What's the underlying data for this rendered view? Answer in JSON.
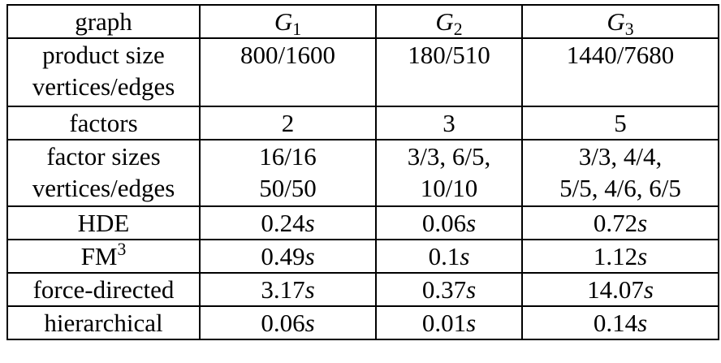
{
  "table": {
    "header": {
      "label": "graph",
      "columns": [
        {
          "symbol": "G",
          "sub": "1"
        },
        {
          "symbol": "G",
          "sub": "2"
        },
        {
          "symbol": "G",
          "sub": "3"
        }
      ]
    },
    "product_size": {
      "label_lines": [
        "product size",
        "vertices/edges"
      ],
      "values": [
        "800/1600",
        "180/510",
        "1440/7680"
      ]
    },
    "factors": {
      "label": "factors",
      "values": [
        "2",
        "3",
        "5"
      ]
    },
    "factor_sizes": {
      "label_lines": [
        "factor sizes",
        "vertices/edges"
      ],
      "values": [
        [
          "16/16",
          "50/50"
        ],
        [
          "3/3, 6/5,",
          "10/10"
        ],
        [
          "3/3, 4/4,",
          "5/5, 4/6, 6/5"
        ]
      ]
    },
    "timings": [
      {
        "label": "HDE",
        "label_sup": "",
        "values": [
          "0.24",
          "0.06",
          "0.72"
        ],
        "unit": "s"
      },
      {
        "label": "FM",
        "label_sup": "3",
        "values": [
          "0.49",
          "0.1",
          "1.12"
        ],
        "unit": "s"
      },
      {
        "label": "force-directed",
        "label_sup": "",
        "values": [
          "3.17",
          "0.37",
          "14.07"
        ],
        "unit": "s"
      },
      {
        "label": "hierarchical",
        "label_sup": "",
        "values": [
          "0.06",
          "0.01",
          "0.14"
        ],
        "unit": "s"
      }
    ]
  }
}
